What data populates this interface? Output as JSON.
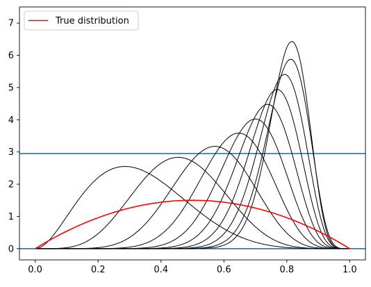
{
  "chart_data": {
    "type": "line",
    "title": "",
    "xlabel": "",
    "ylabel": "",
    "xlim": [
      -0.05,
      1.05
    ],
    "ylim": [
      -0.35,
      7.5
    ],
    "grid": false,
    "legend": {
      "placement": "top-left",
      "entries": [
        "True distribution"
      ]
    },
    "x_ticks": [
      "0.0",
      "0.2",
      "0.4",
      "0.6",
      "0.8",
      "1.0"
    ],
    "y_ticks": [
      "0",
      "1",
      "2",
      "3",
      "4",
      "5",
      "6",
      "7"
    ],
    "true_distribution": {
      "name": "True distribution",
      "color": "#ff0000",
      "a": 2,
      "b": 2
    },
    "horizontal_lines": [
      {
        "y": 2.95,
        "color": "#1f77b4"
      },
      {
        "y": 0.0,
        "color": "#1f77b4"
      }
    ],
    "posterior_curves": {
      "color": "#000000",
      "shape_params": [
        [
          3,
          6
        ],
        [
          6,
          7
        ],
        [
          9,
          7
        ],
        [
          12,
          7
        ],
        [
          15,
          7
        ],
        [
          18,
          7
        ],
        [
          21,
          7
        ],
        [
          24,
          7
        ],
        [
          27,
          7
        ],
        [
          32,
          8
        ]
      ]
    }
  }
}
